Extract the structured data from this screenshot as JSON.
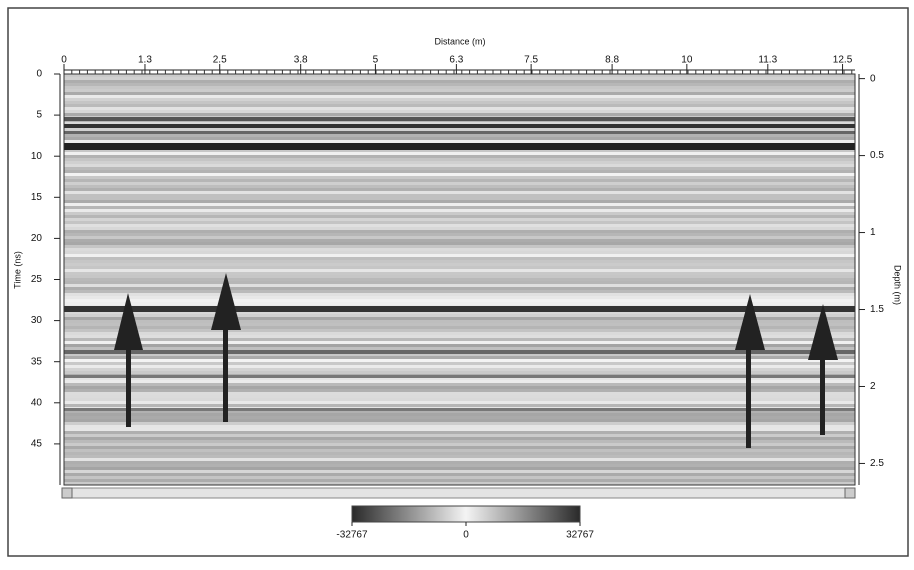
{
  "chart_data": {
    "type": "heatmap",
    "xlabel": "Distance (m)",
    "ylabel": "Time (ns)",
    "y2label": "Depth (m)",
    "xlim": [
      0,
      12.7
    ],
    "xticks": [
      0,
      1.3,
      2.5,
      3.8,
      5,
      6.3,
      7.5,
      8.8,
      10,
      11.3,
      12.5
    ],
    "ylim": [
      0,
      50
    ],
    "yticks": [
      0,
      5,
      10,
      15,
      20,
      25,
      30,
      35,
      40,
      45
    ],
    "y2lim": [
      -0.03,
      2.64
    ],
    "y2ticks": [
      0,
      0.5,
      1,
      1.5,
      2,
      2.5
    ],
    "colorbar": {
      "lim": [
        -32767,
        32767
      ],
      "ticks": [
        -32767,
        0,
        32767
      ]
    }
  }
}
